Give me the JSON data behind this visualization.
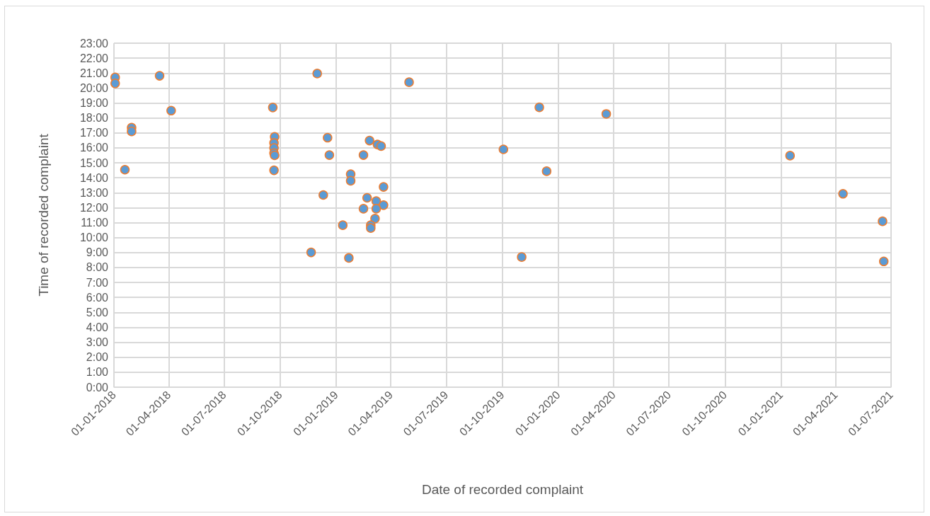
{
  "chart_data": {
    "type": "scatter",
    "xlabel": "Date of recorded complaint",
    "ylabel": "Time of recorded complaint",
    "series": [
      {
        "color": "#5b9bd5",
        "x": [
          "2018-01-03",
          "2018-01-03",
          "2018-03-17",
          "2018-04-05",
          "2018-01-30",
          "2018-01-30",
          "2018-01-19",
          "2018-09-19",
          "2018-09-22",
          "2018-09-21",
          "2018-09-21",
          "2018-09-21",
          "2018-09-22",
          "2018-09-21",
          "2018-12-01",
          "2019-05-01",
          "2018-12-18",
          "2018-12-21",
          "2019-02-25",
          "2019-03-10",
          "2019-03-16",
          "2019-02-15",
          "2019-01-25",
          "2019-01-25",
          "2019-03-20",
          "2018-12-11",
          "2019-02-21",
          "2019-03-08",
          "2019-03-20",
          "2019-02-15",
          "2019-03-08",
          "2019-03-06",
          "2019-02-27",
          "2019-02-27",
          "2019-01-12",
          "2018-11-21",
          "2019-01-22",
          "2019-10-03",
          "2019-12-01",
          "2019-12-13",
          "2019-11-02",
          "2020-03-20",
          "2021-01-16",
          "2021-04-13",
          "2021-06-17",
          "2021-06-19"
        ],
        "values": [
          20.71,
          20.31,
          20.82,
          18.49,
          17.35,
          17.1,
          14.54,
          18.7,
          16.74,
          16.33,
          15.99,
          15.65,
          15.5,
          14.5,
          20.97,
          20.39,
          16.68,
          15.52,
          16.49,
          16.23,
          16.12,
          15.52,
          14.24,
          13.8,
          13.39,
          12.85,
          12.66,
          12.44,
          12.17,
          11.93,
          11.93,
          11.27,
          10.83,
          10.64,
          10.83,
          9.01,
          8.64,
          15.9,
          18.71,
          14.44,
          8.7,
          18.27,
          15.48,
          12.93,
          11.09,
          8.41
        ]
      }
    ],
    "xlim": [
      "2018-01-01",
      "2021-07-01"
    ],
    "xticks": [
      {
        "value": "2018-01-01",
        "label": "01-01-2018"
      },
      {
        "value": "2018-04-01",
        "label": "01-04-2018"
      },
      {
        "value": "2018-07-01",
        "label": "01-07-2018"
      },
      {
        "value": "2018-10-01",
        "label": "01-10-2018"
      },
      {
        "value": "2019-01-01",
        "label": "01-01-2019"
      },
      {
        "value": "2019-04-01",
        "label": "01-04-2019"
      },
      {
        "value": "2019-07-01",
        "label": "01-07-2019"
      },
      {
        "value": "2019-10-01",
        "label": "01-10-2019"
      },
      {
        "value": "2020-01-01",
        "label": "01-01-2020"
      },
      {
        "value": "2020-04-01",
        "label": "01-04-2020"
      },
      {
        "value": "2020-07-01",
        "label": "01-07-2020"
      },
      {
        "value": "2020-10-01",
        "label": "01-10-2020"
      },
      {
        "value": "2021-01-01",
        "label": "01-01-2021"
      },
      {
        "value": "2021-04-01",
        "label": "01-04-2021"
      },
      {
        "value": "2021-07-01",
        "label": "01-07-2021"
      }
    ],
    "ylim": [
      0,
      23
    ],
    "yticks": [
      {
        "value": 0,
        "label": "0:00"
      },
      {
        "value": 1,
        "label": "1:00"
      },
      {
        "value": 2,
        "label": "2:00"
      },
      {
        "value": 3,
        "label": "3:00"
      },
      {
        "value": 4,
        "label": "4:00"
      },
      {
        "value": 5,
        "label": "5:00"
      },
      {
        "value": 6,
        "label": "6:00"
      },
      {
        "value": 7,
        "label": "7:00"
      },
      {
        "value": 8,
        "label": "8:00"
      },
      {
        "value": 9,
        "label": "9:00"
      },
      {
        "value": 10,
        "label": "10:00"
      },
      {
        "value": 11,
        "label": "11:00"
      },
      {
        "value": 12,
        "label": "12:00"
      },
      {
        "value": 13,
        "label": "13:00"
      },
      {
        "value": 14,
        "label": "14:00"
      },
      {
        "value": 15,
        "label": "15:00"
      },
      {
        "value": 16,
        "label": "16:00"
      },
      {
        "value": 17,
        "label": "17:00"
      },
      {
        "value": 18,
        "label": "18:00"
      },
      {
        "value": 19,
        "label": "19:00"
      },
      {
        "value": 20,
        "label": "20:00"
      },
      {
        "value": 21,
        "label": "21:00"
      },
      {
        "value": 22,
        "label": "22:00"
      },
      {
        "value": 23,
        "label": "23:00"
      }
    ],
    "grid": true,
    "marker": "circle"
  }
}
